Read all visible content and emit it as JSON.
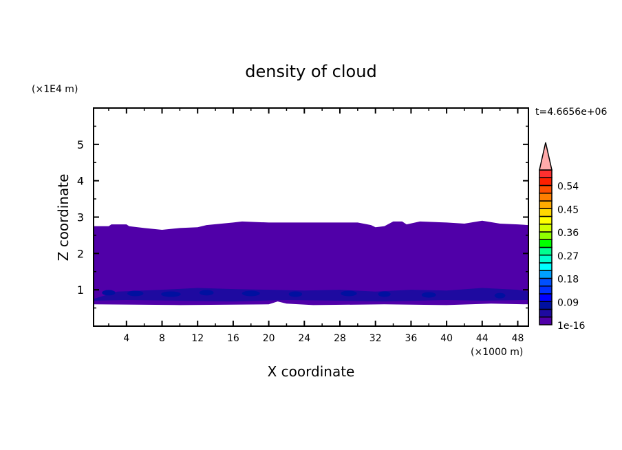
{
  "chart_data": {
    "type": "heatmap",
    "subtype": "filled-contour",
    "title": "density of cloud",
    "xlabel": "X coordinate",
    "ylabel": "Z coordinate",
    "x_unit_label": "(×1000 m)",
    "y_unit_label": "(×1E4 m)",
    "time_label": "t=4.6656e+06",
    "xlim": [
      0.3,
      49.2
    ],
    "ylim": [
      0,
      6
    ],
    "x_ticks": [
      "4",
      "8",
      "12",
      "16",
      "20",
      "24",
      "28",
      "32",
      "36",
      "40",
      "44",
      "48"
    ],
    "y_ticks": [
      "1",
      "2",
      "3",
      "4",
      "5"
    ],
    "grid": false,
    "colorbar": {
      "placement": "right",
      "levels_min": 1e-16,
      "level_step": 0.03,
      "levels_max": 0.6,
      "extend": "max",
      "tick_labels": [
        "1e-16",
        "0.09",
        "0.18",
        "0.27",
        "0.36",
        "0.45",
        "0.54"
      ],
      "colors": [
        "#5000a8",
        "#1e0aa0",
        "#0010a0",
        "#0000ff",
        "#0030ff",
        "#0050ff",
        "#00a0ff",
        "#00ffff",
        "#00ffd0",
        "#00ff90",
        "#00ff00",
        "#90ff00",
        "#d0ff00",
        "#ffff00",
        "#ffd800",
        "#ffaa00",
        "#ff7f00",
        "#ff5000",
        "#ff2000",
        "#ff3030"
      ],
      "over_color": "#ffaaaa"
    },
    "field_summary": {
      "cloud_base_z": 0.6,
      "cloud_top_z": 2.8,
      "dominant_level": "1e-16 to 0.03",
      "denser_band_z": [
        0.7,
        1.05
      ],
      "denser_band_level": "0.03 to 0.09"
    }
  }
}
